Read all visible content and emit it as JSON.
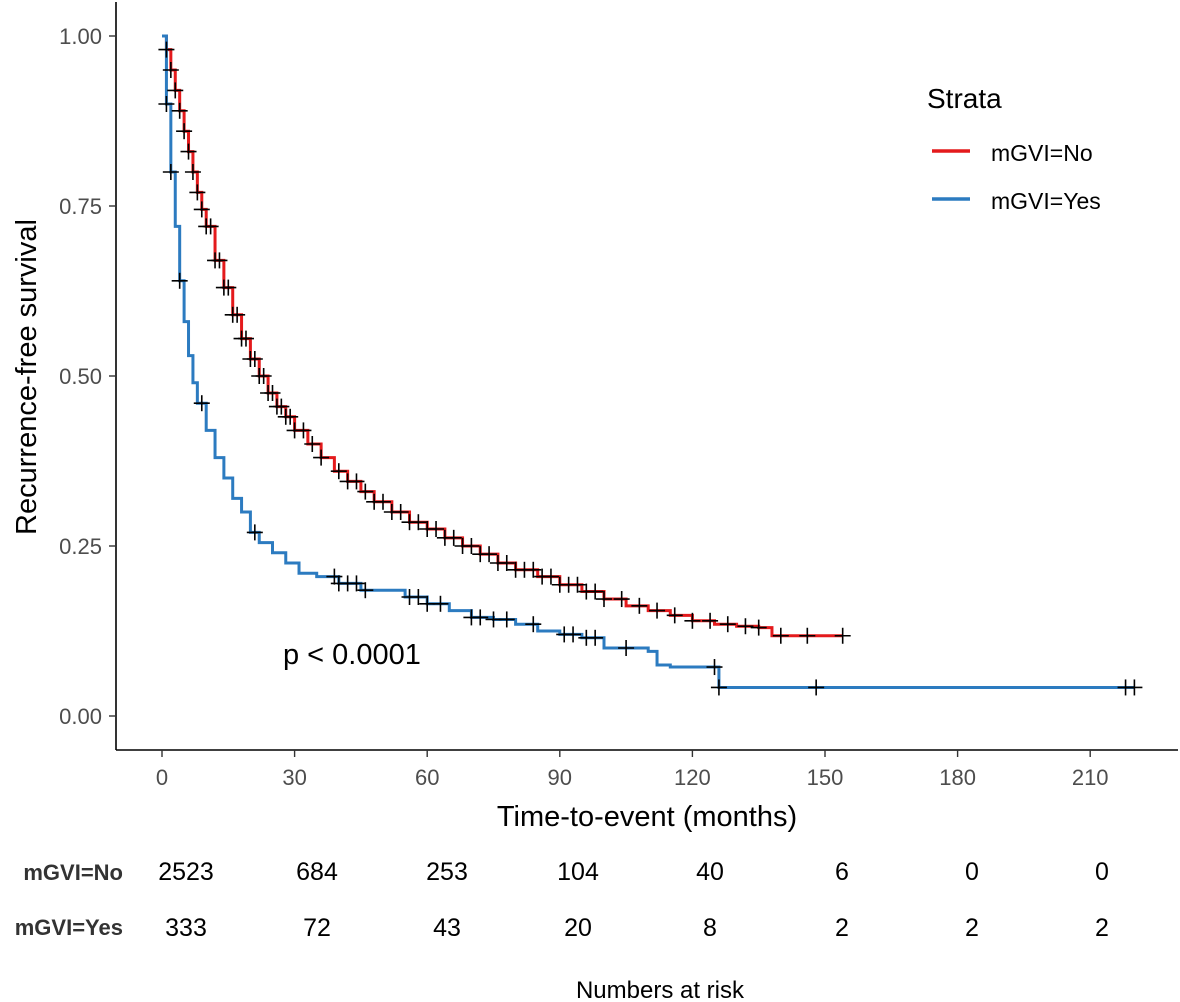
{
  "chart_data": {
    "type": "line",
    "subtype": "kaplan-meier-step",
    "xlabel": "Time-to-event (months)",
    "ylabel": "Recurrence-free survival",
    "xlim": [
      -10,
      230
    ],
    "ylim": [
      -0.05,
      1.05
    ],
    "x_ticks": [
      0,
      30,
      60,
      90,
      120,
      150,
      180,
      210
    ],
    "y_ticks": [
      0.0,
      0.25,
      0.5,
      0.75,
      1.0
    ],
    "y_tick_labels": [
      "0.00",
      "0.25",
      "0.50",
      "0.75",
      "1.00"
    ],
    "grid": false,
    "legend": {
      "title": "Strata",
      "position": "top-right"
    },
    "annotation": "p < 0.0001",
    "series": [
      {
        "name": "mGVI=No",
        "color": "#e41a1c",
        "x": [
          0,
          1,
          2,
          3,
          4,
          5,
          6,
          7,
          8,
          9,
          10,
          12,
          14,
          16,
          18,
          20,
          22,
          24,
          26,
          28,
          30,
          33,
          36,
          39,
          42,
          45,
          48,
          52,
          56,
          60,
          64,
          68,
          72,
          76,
          80,
          85,
          90,
          95,
          100,
          105,
          110,
          115,
          120,
          125,
          130,
          135,
          137,
          138,
          142,
          146,
          150,
          154
        ],
        "y": [
          1.0,
          0.98,
          0.95,
          0.92,
          0.89,
          0.86,
          0.83,
          0.8,
          0.77,
          0.745,
          0.72,
          0.67,
          0.63,
          0.59,
          0.555,
          0.525,
          0.5,
          0.475,
          0.455,
          0.44,
          0.42,
          0.4,
          0.38,
          0.36,
          0.345,
          0.33,
          0.315,
          0.3,
          0.285,
          0.275,
          0.262,
          0.25,
          0.238,
          0.225,
          0.215,
          0.205,
          0.193,
          0.183,
          0.172,
          0.162,
          0.155,
          0.148,
          0.14,
          0.135,
          0.132,
          0.13,
          0.13,
          0.118,
          0.118,
          0.118,
          0.118,
          0.118
        ],
        "censor_x": [
          1,
          2,
          3,
          4,
          5,
          6,
          7,
          8,
          9,
          10,
          11,
          12,
          13,
          14,
          15,
          16,
          17,
          18,
          19,
          20,
          21,
          22,
          23,
          24,
          25,
          26,
          27,
          28,
          29,
          30,
          32,
          34,
          36,
          40,
          42,
          44,
          46,
          48,
          50,
          52,
          54,
          56,
          58,
          60,
          62,
          64,
          66,
          68,
          70,
          72,
          74,
          76,
          78,
          80,
          82,
          84,
          86,
          88,
          90,
          92,
          94,
          96,
          98,
          100,
          104,
          108,
          112,
          116,
          120,
          124,
          128,
          132,
          135,
          140,
          146,
          154
        ],
        "risk_table": [
          2523,
          684,
          253,
          104,
          40,
          6,
          0,
          0
        ]
      },
      {
        "name": "mGVI=Yes",
        "color": "#2c7bc0",
        "x": [
          0,
          1,
          2,
          3,
          4,
          5,
          6,
          7,
          8,
          10,
          12,
          14,
          16,
          18,
          20,
          22,
          25,
          28,
          31,
          35,
          40,
          45,
          50,
          55,
          60,
          65,
          70,
          75,
          80,
          85,
          90,
          95,
          100,
          105,
          110,
          112,
          115,
          120,
          126,
          130,
          150,
          180,
          210,
          220
        ],
        "y": [
          1.0,
          0.9,
          0.8,
          0.72,
          0.64,
          0.58,
          0.53,
          0.49,
          0.46,
          0.42,
          0.38,
          0.35,
          0.32,
          0.3,
          0.27,
          0.255,
          0.24,
          0.225,
          0.21,
          0.205,
          0.195,
          0.185,
          0.185,
          0.175,
          0.165,
          0.155,
          0.145,
          0.142,
          0.135,
          0.125,
          0.12,
          0.115,
          0.1,
          0.1,
          0.095,
          0.075,
          0.072,
          0.072,
          0.042,
          0.042,
          0.042,
          0.042,
          0.042,
          0.042
        ],
        "censor_x": [
          1,
          2,
          4,
          9,
          21,
          39,
          40,
          42,
          44,
          46,
          56,
          58,
          60,
          63,
          70,
          72,
          75,
          78,
          84,
          91,
          93,
          96,
          98,
          105,
          125,
          126,
          148,
          218,
          220
        ],
        "risk_table": [
          333,
          72,
          43,
          20,
          8,
          2,
          2,
          2
        ]
      }
    ],
    "risk_table_title": "Numbers at risk"
  }
}
